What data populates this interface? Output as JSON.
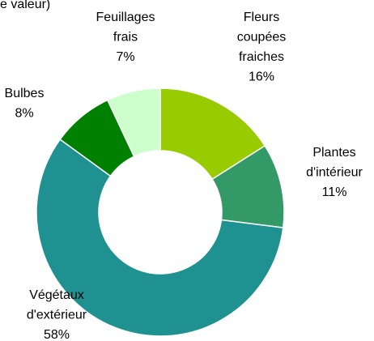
{
  "chart_data": {
    "type": "donut",
    "title": "e valeur)",
    "categories": [
      [
        "Fleurs",
        "coupées",
        "fraiches"
      ],
      [
        "Plantes",
        "d'intérieur"
      ],
      [
        "Végétaux",
        "d'extérieur"
      ],
      [
        "Bulbes"
      ],
      [
        "Feuillages",
        "frais"
      ]
    ],
    "values": [
      16,
      11,
      58,
      8,
      7
    ],
    "value_labels": [
      "16%",
      "11%",
      "58%",
      "8%",
      "7%"
    ],
    "colors": [
      "#99cc00",
      "#339966",
      "#1f9191",
      "#008000",
      "#ccffcc"
    ]
  }
}
